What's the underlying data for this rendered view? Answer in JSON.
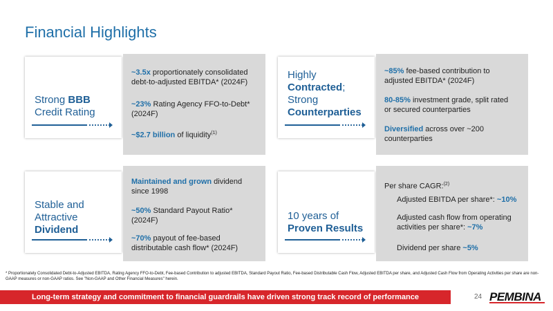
{
  "page": {
    "title": "Financial Highlights",
    "footnote": "* Proportionately Consolidated Debt-to-Adjusted EBITDA, Rating Agency FFO-to-Debt, Fee-based Contribution to adjusted EBITDA, Standard Payout Ratio, Fee-based Distributable Cash Flow, Adjusted EBITDA per share, and Adjusted Cash Flow from Operating Activities per share are non-GAAP measures or non-GAAP ratios. See \"Non-GAAP and Other Financial Measures\" herein.",
    "banner": "Long-term strategy and commitment to financial guardrails have driven strong track record of performance",
    "page_number": "24",
    "logo_text": "PEMBINA"
  },
  "panels": {
    "credit": {
      "label_pre": "Strong ",
      "label_bold": "BBB",
      "label_line2": "Credit Rating",
      "b1_hl": "~3.5x",
      "b1_text": " proportionately consolidated debt-to-adjusted EBITDA* (2024F)",
      "b2_hl": "~23%",
      "b2_text": " Rating Agency FFO-to-Debt* (2024F)",
      "b3_hl": "~$2.7 billion",
      "b3_text": " of liquidity",
      "b3_sup": "(1)"
    },
    "contracted": {
      "label_line1": "Highly",
      "label_bold1": "Contracted",
      "label_semi": ";",
      "label_line3": "Strong",
      "label_bold2": "Counterparties",
      "b1_hl": "~85%",
      "b1_text": " fee-based contribution to adjusted EBITDA* (2024F)",
      "b2_hl": "80-85%",
      "b2_text": " investment grade, split rated or secured counterparties",
      "b3_hl": "Diversified",
      "b3_text": " across over ~200 counterparties"
    },
    "dividend": {
      "label_line1": "Stable and",
      "label_line2": "Attractive",
      "label_bold": "Dividend",
      "b1_hl": "Maintained and grown",
      "b1_text": " dividend since 1998",
      "b2_hl": "~50%",
      "b2_text": " Standard Payout Ratio* (2024F)",
      "b3_hl": "~70%",
      "b3_text": " payout of fee-based distributable cash flow* (2024F)"
    },
    "results": {
      "label_line1": "10 years of",
      "label_bold": "Proven Results",
      "intro": "Per share CAGR:",
      "intro_sup": "(2)",
      "s1_text": "Adjusted EBITDA per share*: ",
      "s1_hl": "~10%",
      "s2_text": "Adjusted cash flow from operating activities per share*: ",
      "s2_hl": "~7%",
      "s3_text": "Dividend per share ",
      "s3_hl": "~5%"
    }
  }
}
